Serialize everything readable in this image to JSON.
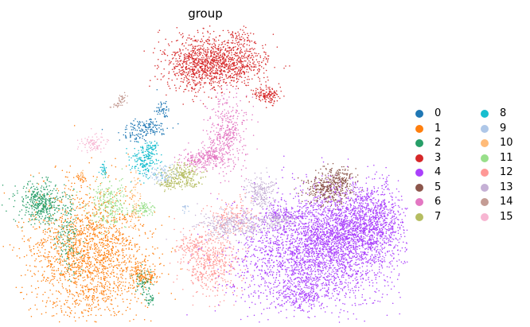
{
  "chart_data": {
    "type": "scatter",
    "title": "group",
    "xlabel": "",
    "ylabel": "",
    "axes_visible": false,
    "grid": false,
    "legend_position": "right, two columns",
    "series": [
      {
        "name": "0",
        "color": "#1f77b4"
      },
      {
        "name": "1",
        "color": "#ff7f0e"
      },
      {
        "name": "2",
        "color": "#279e68"
      },
      {
        "name": "3",
        "color": "#d62728"
      },
      {
        "name": "4",
        "color": "#aa40fc"
      },
      {
        "name": "5",
        "color": "#8c564b"
      },
      {
        "name": "6",
        "color": "#e377c2"
      },
      {
        "name": "7",
        "color": "#b5bd61"
      },
      {
        "name": "8",
        "color": "#17becf"
      },
      {
        "name": "9",
        "color": "#aec7e8"
      },
      {
        "name": "10",
        "color": "#ffbb78"
      },
      {
        "name": "11",
        "color": "#98df8a"
      },
      {
        "name": "12",
        "color": "#ff9896"
      },
      {
        "name": "13",
        "color": "#c5b0d5"
      },
      {
        "name": "14",
        "color": "#c49c94"
      },
      {
        "name": "15",
        "color": "#f7b6d2"
      }
    ]
  }
}
